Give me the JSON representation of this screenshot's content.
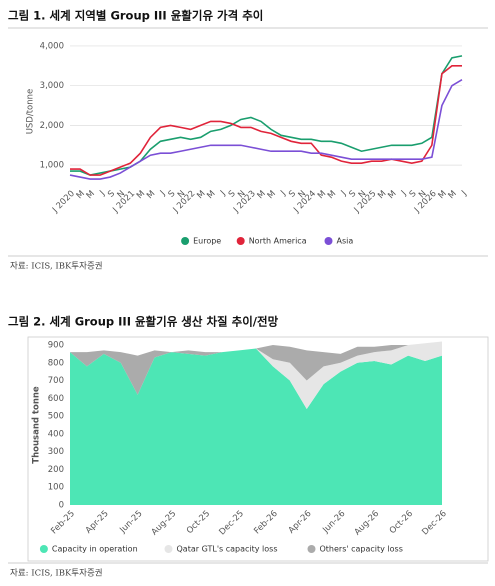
{
  "chart_data": [
    {
      "type": "line",
      "title": "그림 1. 세계 지역별 Group III 윤활기유 가격 추이",
      "y_label": "USD/tonne",
      "source": "자료: ICIS, IBK투자증권",
      "categories": [
        "J 2020",
        "M",
        "M",
        "J",
        "S",
        "N",
        "J 2021",
        "M",
        "M",
        "J",
        "S",
        "N",
        "J 2022",
        "M",
        "M",
        "J",
        "S",
        "N",
        "J 2023",
        "M",
        "M",
        "J",
        "S",
        "N",
        "J 2024",
        "M",
        "M",
        "J",
        "S",
        "N",
        "J 2025",
        "M",
        "M",
        "J",
        "S",
        "N",
        "J 2026",
        "M",
        "M",
        "J"
      ],
      "ylim": [
        500,
        4200
      ],
      "yticks": [
        {
          "value": 1000,
          "label": "1,000"
        },
        {
          "value": 2000,
          "label": "2,000"
        },
        {
          "value": 3000,
          "label": "3,000"
        },
        {
          "value": 4000,
          "label": "4,000"
        }
      ],
      "grid": true,
      "legend": "bottom",
      "series": [
        {
          "name": "Europe",
          "color": "#1a9e6e",
          "values": [
            850,
            850,
            750,
            800,
            850,
            900,
            950,
            1100,
            1400,
            1600,
            1650,
            1700,
            1650,
            1700,
            1850,
            1900,
            2000,
            2150,
            2200,
            2100,
            1900,
            1750,
            1700,
            1650,
            1650,
            1600,
            1600,
            1550,
            1450,
            1350,
            1400,
            1450,
            1500,
            1500,
            1500,
            1550,
            1700,
            3300,
            3700,
            3750
          ]
        },
        {
          "name": "North America",
          "color": "#e0243a",
          "values": [
            900,
            900,
            750,
            750,
            850,
            950,
            1050,
            1300,
            1700,
            1950,
            2000,
            1950,
            1900,
            2000,
            2100,
            2100,
            2050,
            1950,
            1950,
            1850,
            1800,
            1700,
            1600,
            1550,
            1550,
            1250,
            1200,
            1100,
            1050,
            1050,
            1100,
            1100,
            1150,
            1100,
            1050,
            1100,
            1500,
            3300,
            3500,
            3500
          ]
        },
        {
          "name": "Asia",
          "color": "#7b4fd6",
          "values": [
            750,
            700,
            650,
            650,
            700,
            800,
            950,
            1100,
            1250,
            1300,
            1300,
            1350,
            1400,
            1450,
            1500,
            1500,
            1500,
            1500,
            1450,
            1400,
            1350,
            1350,
            1350,
            1350,
            1300,
            1300,
            1250,
            1200,
            1150,
            1150,
            1150,
            1150,
            1150,
            1150,
            1150,
            1150,
            1200,
            2500,
            3000,
            3150
          ]
        }
      ]
    },
    {
      "type": "area",
      "title": "그림 2. 세계 Group III 윤활기유 생산 차질 추이/전망",
      "y_label": "Thousand tonne",
      "source": "자료: ICIS, IBK투자증권",
      "categories": [
        "Feb-25",
        null,
        "Apr-25",
        null,
        "Jun-25",
        null,
        "Aug-25",
        null,
        "Oct-25",
        null,
        "Dec-25",
        null,
        "Feb-26",
        null,
        "Apr-26",
        null,
        "Jun-26",
        null,
        "Aug-26",
        null,
        "Oct-26",
        null,
        "Dec-26"
      ],
      "ylim": [
        0,
        900
      ],
      "yticks": [
        0,
        100,
        200,
        300,
        400,
        500,
        600,
        700,
        800,
        900
      ],
      "grid": false,
      "stacked": true,
      "legend": "bottom",
      "series": [
        {
          "name": "Capacity in operation",
          "color": "#4de6b5",
          "values": [
            860,
            780,
            850,
            800,
            620,
            830,
            860,
            850,
            840,
            860,
            870,
            880,
            780,
            700,
            540,
            680,
            750,
            800,
            810,
            790,
            840,
            810,
            840
          ]
        },
        {
          "name": "Qatar GTL's capacity loss",
          "color": "#e6e6e6",
          "values": [
            0,
            0,
            0,
            0,
            0,
            0,
            0,
            0,
            0,
            0,
            0,
            0,
            40,
            100,
            160,
            100,
            50,
            40,
            50,
            80,
            60,
            100,
            80
          ]
        },
        {
          "name": "Others' capacity loss",
          "color": "#ababab",
          "values": [
            0,
            80,
            20,
            60,
            220,
            40,
            0,
            20,
            20,
            0,
            0,
            0,
            80,
            90,
            170,
            80,
            50,
            50,
            30,
            30,
            0,
            0,
            0
          ]
        }
      ]
    }
  ]
}
